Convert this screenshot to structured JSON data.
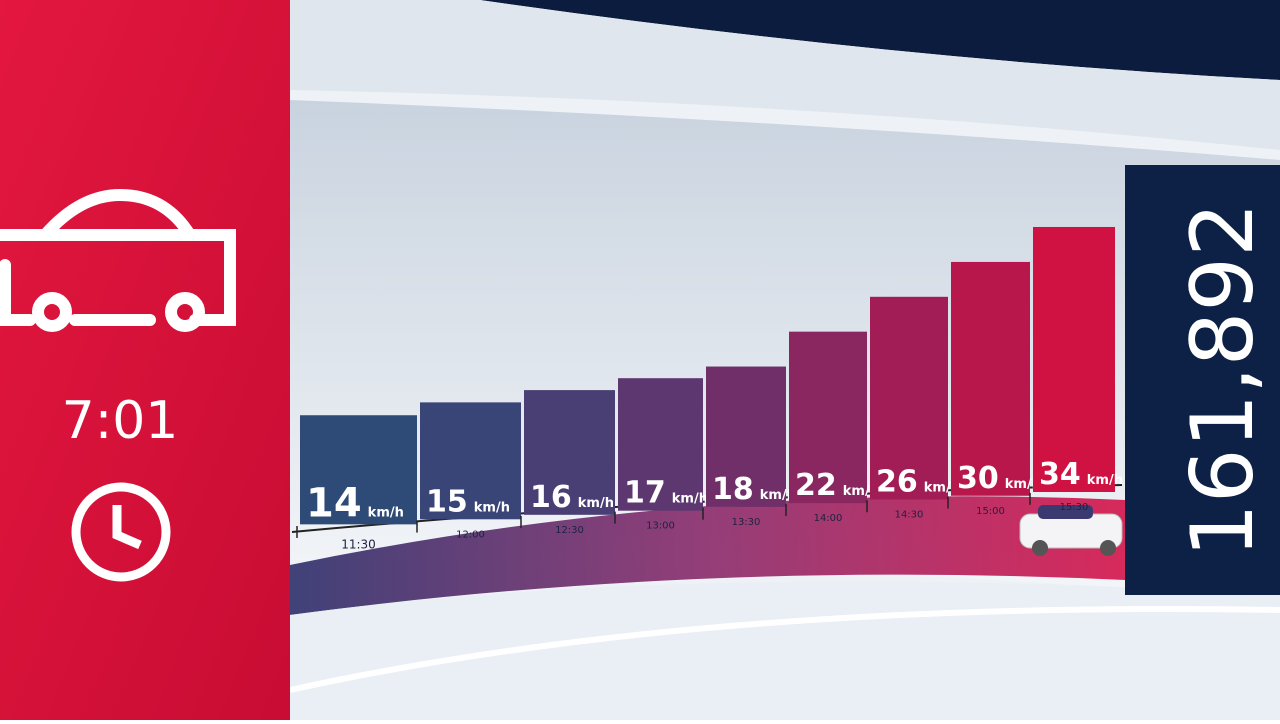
{
  "chart_data": {
    "type": "bar",
    "clock": "7:01",
    "counter": "161,892",
    "unit": "km/h",
    "categories": [
      "11:30",
      "12:00",
      "12:30",
      "13:00",
      "13:30",
      "14:00",
      "14:30",
      "15:00",
      "15:30"
    ],
    "values": [
      14,
      15,
      16,
      17,
      18,
      22,
      26,
      30,
      34
    ],
    "colors": [
      "#2e4a76",
      "#3a4577",
      "#4a3f74",
      "#5c3770",
      "#712f69",
      "#8a2660",
      "#a21d55",
      "#b8174b",
      "#cf1242"
    ]
  }
}
